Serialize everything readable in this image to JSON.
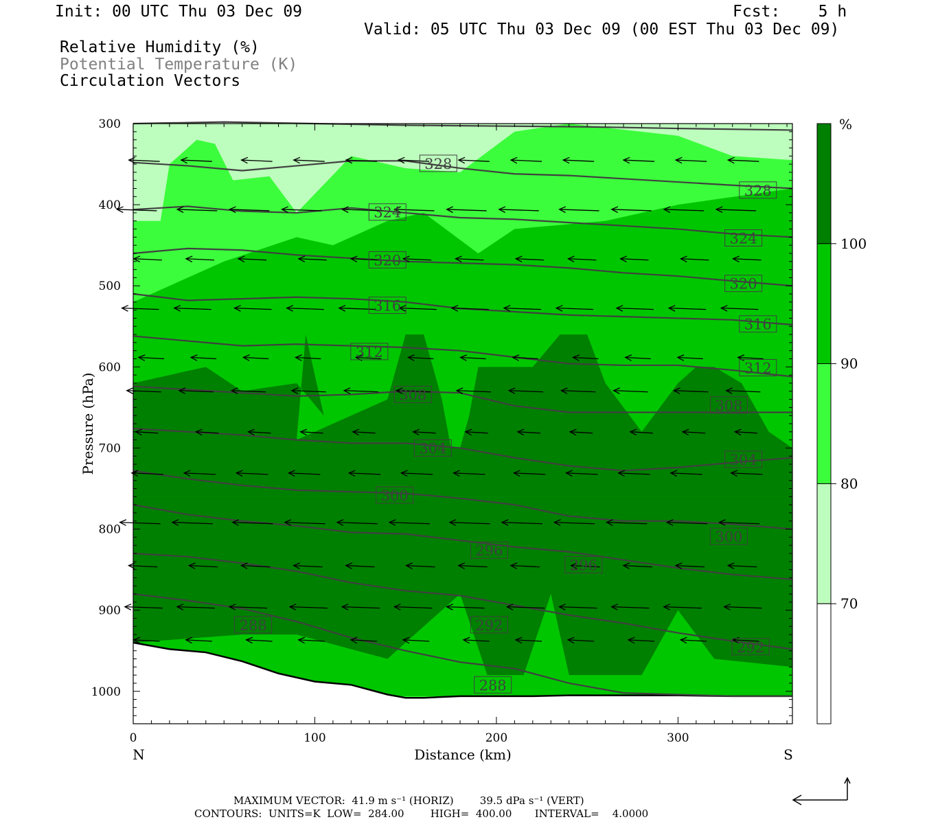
{
  "header": {
    "init": "Init: 00 UTC Thu 03 Dec 09",
    "fcst": "Fcst:    5 h",
    "valid": "Valid: 05 UTC Thu 03 Dec 09 (00 EST Thu 03 Dec 09)"
  },
  "legend": {
    "line1": "Relative Humidity (%)",
    "line2": "Potential Temperature (K)",
    "line3": "Circulation Vectors"
  },
  "footer": {
    "max_vector": "MAXIMUM VECTOR:  41.9 m s⁻¹ (HORIZ)        39.5 dPa s⁻¹ (VERT)",
    "contours": "CONTOURS:  UNITS=K  LOW=  284.00        HIGH=  400.00       INTERVAL=    4.0000"
  },
  "colors": {
    "rh70_80": "#bdfdbd",
    "rh80_90": "#3cfd3c",
    "rh90_100": "#00c600",
    "rh100": "#008000",
    "theta_line": "#404040"
  },
  "chart_data": {
    "type": "cross-section",
    "xlabel": "Distance (km)",
    "ylabel": "Pressure (hPa)",
    "xlim": [
      0,
      363
    ],
    "ylim": [
      1040,
      300
    ],
    "x_ticks": [
      0,
      100,
      200,
      300
    ],
    "y_ticks": [
      300,
      400,
      500,
      600,
      700,
      800,
      900,
      1000
    ],
    "x_end_labels": {
      "left": "N",
      "right": "S"
    },
    "colorbar": {
      "unit": "%",
      "levels": [
        70,
        80,
        90,
        100
      ]
    },
    "theta_contours": [
      {
        "label": "328",
        "x": [
          0,
          30,
          60,
          90,
          120,
          150,
          180,
          210,
          240,
          270,
          300,
          330,
          363
        ],
        "p": [
          348,
          352,
          358,
          352,
          346,
          346,
          355,
          362,
          364,
          368,
          372,
          376,
          380
        ]
      },
      {
        "label": "324",
        "x": [
          0,
          30,
          60,
          90,
          120,
          150,
          180,
          210,
          240,
          270,
          300,
          330,
          363
        ],
        "p": [
          406,
          402,
          408,
          410,
          404,
          410,
          416,
          418,
          422,
          426,
          430,
          436,
          440
        ]
      },
      {
        "label": "320",
        "x": [
          0,
          30,
          60,
          90,
          120,
          150,
          180,
          210,
          240,
          270,
          300,
          330,
          363
        ],
        "p": [
          460,
          454,
          456,
          462,
          466,
          470,
          472,
          474,
          478,
          484,
          488,
          494,
          500
        ]
      },
      {
        "label": "316",
        "x": [
          0,
          30,
          60,
          90,
          120,
          150,
          180,
          210,
          240,
          270,
          300,
          330,
          363
        ],
        "p": [
          510,
          518,
          516,
          514,
          516,
          520,
          528,
          532,
          536,
          538,
          540,
          542,
          548
        ]
      },
      {
        "label": "312",
        "x": [
          0,
          30,
          60,
          90,
          120,
          150,
          180,
          210,
          240,
          270,
          300,
          330,
          363
        ],
        "p": [
          562,
          568,
          574,
          572,
          574,
          576,
          580,
          588,
          596,
          598,
          598,
          604,
          612
        ]
      },
      {
        "label": "308",
        "x": [
          0,
          30,
          60,
          90,
          120,
          150,
          180,
          210,
          240,
          270,
          300,
          330,
          363
        ],
        "p": [
          624,
          628,
          632,
          636,
          634,
          630,
          632,
          648,
          656,
          656,
          656,
          656,
          656
        ]
      },
      {
        "label": "304",
        "x": [
          0,
          30,
          60,
          90,
          120,
          150,
          180,
          210,
          240,
          270,
          300,
          330,
          363
        ],
        "p": [
          676,
          680,
          684,
          690,
          694,
          694,
          700,
          712,
          722,
          728,
          724,
          718,
          712
        ]
      },
      {
        "label": "300",
        "x": [
          0,
          30,
          60,
          90,
          120,
          150,
          180,
          210,
          240,
          270,
          300,
          330,
          363
        ],
        "p": [
          728,
          738,
          746,
          752,
          754,
          756,
          762,
          770,
          784,
          790,
          790,
          794,
          800
        ]
      },
      {
        "label": "296",
        "x": [
          0,
          30,
          60,
          90,
          120,
          150,
          180,
          210,
          240,
          270,
          300,
          330,
          363
        ],
        "p": [
          770,
          782,
          790,
          796,
          804,
          806,
          814,
          822,
          828,
          838,
          848,
          856,
          862
        ]
      },
      {
        "label": "292",
        "x": [
          0,
          30,
          60,
          90,
          120,
          150,
          180,
          210,
          240,
          270,
          300,
          330,
          363
        ],
        "p": [
          830,
          834,
          842,
          852,
          866,
          876,
          882,
          894,
          906,
          916,
          928,
          938,
          948
        ]
      },
      {
        "label": "288",
        "x": [
          0,
          30,
          60,
          90,
          120,
          150,
          180,
          210,
          240,
          270,
          300,
          330,
          363
        ],
        "p": [
          880,
          888,
          898,
          914,
          934,
          950,
          964,
          972,
          990,
          1002,
          1004,
          1006,
          1006
        ]
      },
      {
        "label": "",
        "x": [
          0,
          50,
          100,
          150,
          200,
          250,
          300,
          363
        ],
        "p": [
          300,
          298,
          300,
          302,
          303,
          304,
          306,
          308
        ]
      }
    ],
    "contour_label_positions": [
      {
        "label": "328",
        "x": 168,
        "p": 349
      },
      {
        "label": "328",
        "x": 344,
        "p": 382
      },
      {
        "label": "324",
        "x": 140,
        "p": 409
      },
      {
        "label": "324",
        "x": 336,
        "p": 441
      },
      {
        "label": "320",
        "x": 140,
        "p": 468
      },
      {
        "label": "320",
        "x": 336,
        "p": 497
      },
      {
        "label": "316",
        "x": 140,
        "p": 524
      },
      {
        "label": "316",
        "x": 344,
        "p": 547
      },
      {
        "label": "312",
        "x": 130,
        "p": 581
      },
      {
        "label": "312",
        "x": 344,
        "p": 601
      },
      {
        "label": "308",
        "x": 154,
        "p": 634
      },
      {
        "label": "308",
        "x": 328,
        "p": 647
      },
      {
        "label": "304",
        "x": 165,
        "p": 700
      },
      {
        "label": "304",
        "x": 336,
        "p": 714
      },
      {
        "label": "300",
        "x": 144,
        "p": 758
      },
      {
        "label": "300",
        "x": 328,
        "p": 809
      },
      {
        "label": "296",
        "x": 196,
        "p": 826
      },
      {
        "label": "296",
        "x": 248,
        "p": 844
      },
      {
        "label": "292",
        "x": 196,
        "p": 918
      },
      {
        "label": "292",
        "x": 340,
        "p": 945
      },
      {
        "label": "288",
        "x": 66,
        "p": 918
      },
      {
        "label": "288",
        "x": 198,
        "p": 992
      }
    ],
    "surface_pressure": {
      "x": [
        0,
        20,
        40,
        60,
        80,
        100,
        120,
        140,
        150,
        160,
        180,
        200,
        220,
        240,
        260,
        280,
        300,
        330,
        363
      ],
      "p": [
        940,
        948,
        952,
        963,
        978,
        988,
        992,
        1004,
        1008,
        1008,
        1006,
        1006,
        1006,
        1005,
        1005,
        1005,
        1005,
        1006,
        1006
      ]
    },
    "rh_100_regions": [
      {
        "x": [
          0,
          40,
          60,
          90,
          105,
          95,
          90,
          140,
          150,
          160,
          170,
          175,
          180,
          185,
          190,
          195,
          220,
          235,
          250,
          260,
          280,
          300,
          310,
          320,
          335,
          350,
          363,
          363,
          0
        ],
        "p": [
          620,
          600,
          630,
          620,
          660,
          560,
          690,
          640,
          560,
          560,
          640,
          700,
          700,
          660,
          600,
          600,
          600,
          560,
          560,
          620,
          680,
          620,
          600,
          600,
          620,
          680,
          700,
          760,
          760
        ]
      }
    ]
  }
}
